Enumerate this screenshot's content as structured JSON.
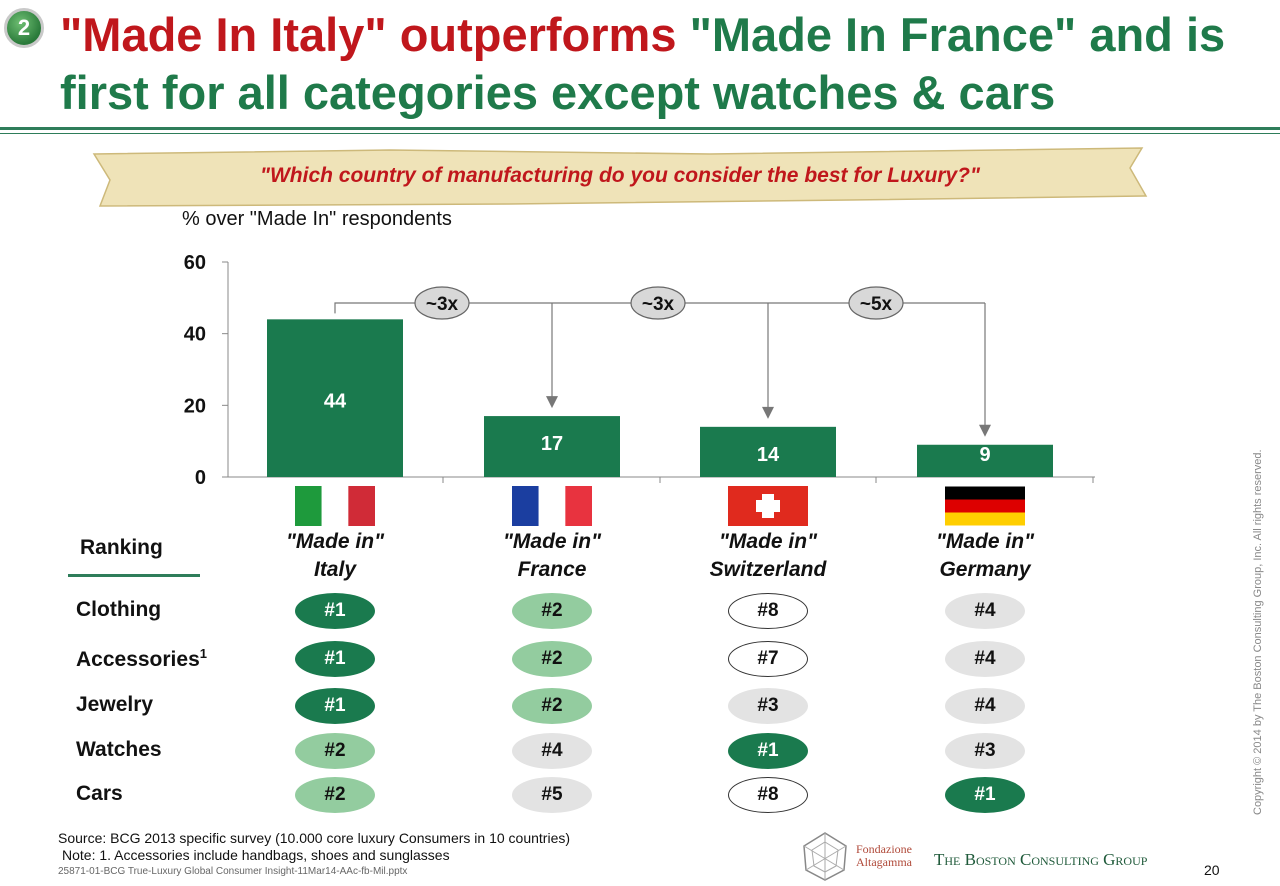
{
  "header": {
    "badge": "2",
    "title_red": "\"Made In Italy\" outperforms",
    "title_green": "\"Made In France\" and is first for all categories except watches & cars"
  },
  "question": "\"Which country of manufacturing do you consider the best for Luxury?\"",
  "unit_label": "% over \"Made In\" respondents",
  "chart_data": {
    "type": "bar",
    "categories": [
      "\"Made in\" Italy",
      "\"Made in\" France",
      "\"Made in\" Switzerland",
      "\"Made in\" Germany"
    ],
    "values": [
      44,
      17,
      14,
      9
    ],
    "ylim": [
      0,
      60
    ],
    "yticks": [
      0,
      20,
      40,
      60
    ],
    "bar_color": "#1a7a4e",
    "grid": false,
    "annotations": [
      "~3x",
      "~3x",
      "~5x"
    ]
  },
  "columns": [
    {
      "line1": "\"Made in\"",
      "line2": "Italy",
      "flag": "italy-flag"
    },
    {
      "line1": "\"Made in\"",
      "line2": "France",
      "flag": "france-flag"
    },
    {
      "line1": "\"Made in\"",
      "line2": "Switzerland",
      "flag": "switzerland-flag"
    },
    {
      "line1": "\"Made in\"",
      "line2": "Germany",
      "flag": "germany-flag"
    }
  ],
  "ranking": {
    "heading": "Ranking",
    "rows": [
      {
        "label": "Clothing",
        "sup": "",
        "ranks": [
          "#1",
          "#2",
          "#8",
          "#4"
        ]
      },
      {
        "label": "Accessories",
        "sup": "1",
        "ranks": [
          "#1",
          "#2",
          "#7",
          "#4"
        ]
      },
      {
        "label": "Jewelry",
        "sup": "",
        "ranks": [
          "#1",
          "#2",
          "#3",
          "#4"
        ]
      },
      {
        "label": "Watches",
        "sup": "",
        "ranks": [
          "#2",
          "#4",
          "#1",
          "#3"
        ]
      },
      {
        "label": "Cars",
        "sup": "",
        "ranks": [
          "#2",
          "#5",
          "#8",
          "#1"
        ]
      }
    ],
    "colors": {
      "#1": "#1a7a4e",
      "#2": "#93cc9f",
      "#3": "#e3e3e3",
      "#4": "#e3e3e3",
      "#5": "#e3e3e3",
      "#7": "#ffffff",
      "#8": "#ffffff"
    }
  },
  "footer": {
    "source": "Source: BCG 2013 specific survey (10.000 core luxury Consumers in 10 countries)",
    "note": "Note: 1. Accessories include handbags, shoes and sunglasses",
    "filename": "25871-01-BCG True-Luxury Global Consumer Insight-11Mar14-AAc-fb-Mil.pptx",
    "copyright": "Copyright © 2014 by The Boston Consulting Group, Inc. All rights reserved.",
    "altagamma_line1": "Fondazione",
    "altagamma_line2": "Altagamma",
    "bcg": "The Boston Consulting Group",
    "page": "20"
  }
}
